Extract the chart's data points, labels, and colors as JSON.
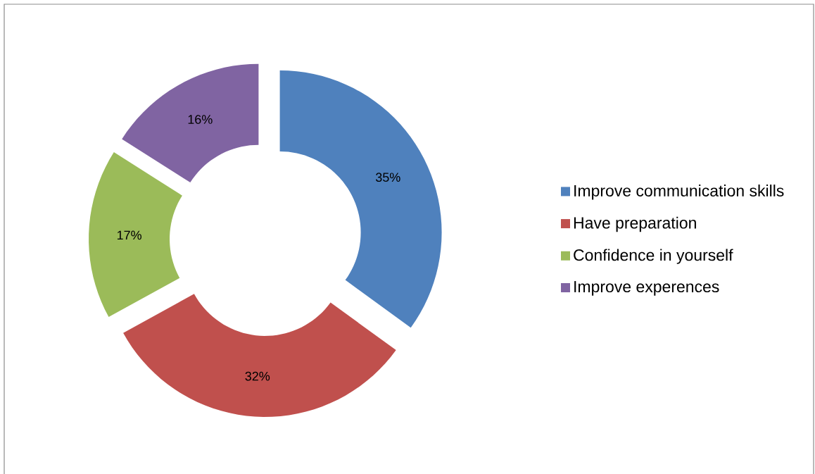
{
  "chart_data": {
    "type": "donut",
    "categories": [
      "Improve communication skills",
      "Have preparation",
      "Confidence in yourself",
      "Improve experences"
    ],
    "values": [
      35,
      32,
      17,
      16
    ],
    "colors": [
      "#4f81bd",
      "#c0504d",
      "#9bbb59",
      "#8064a2"
    ],
    "value_labels": [
      "35%",
      "32%",
      "17%",
      "16%"
    ],
    "legend": "right"
  }
}
